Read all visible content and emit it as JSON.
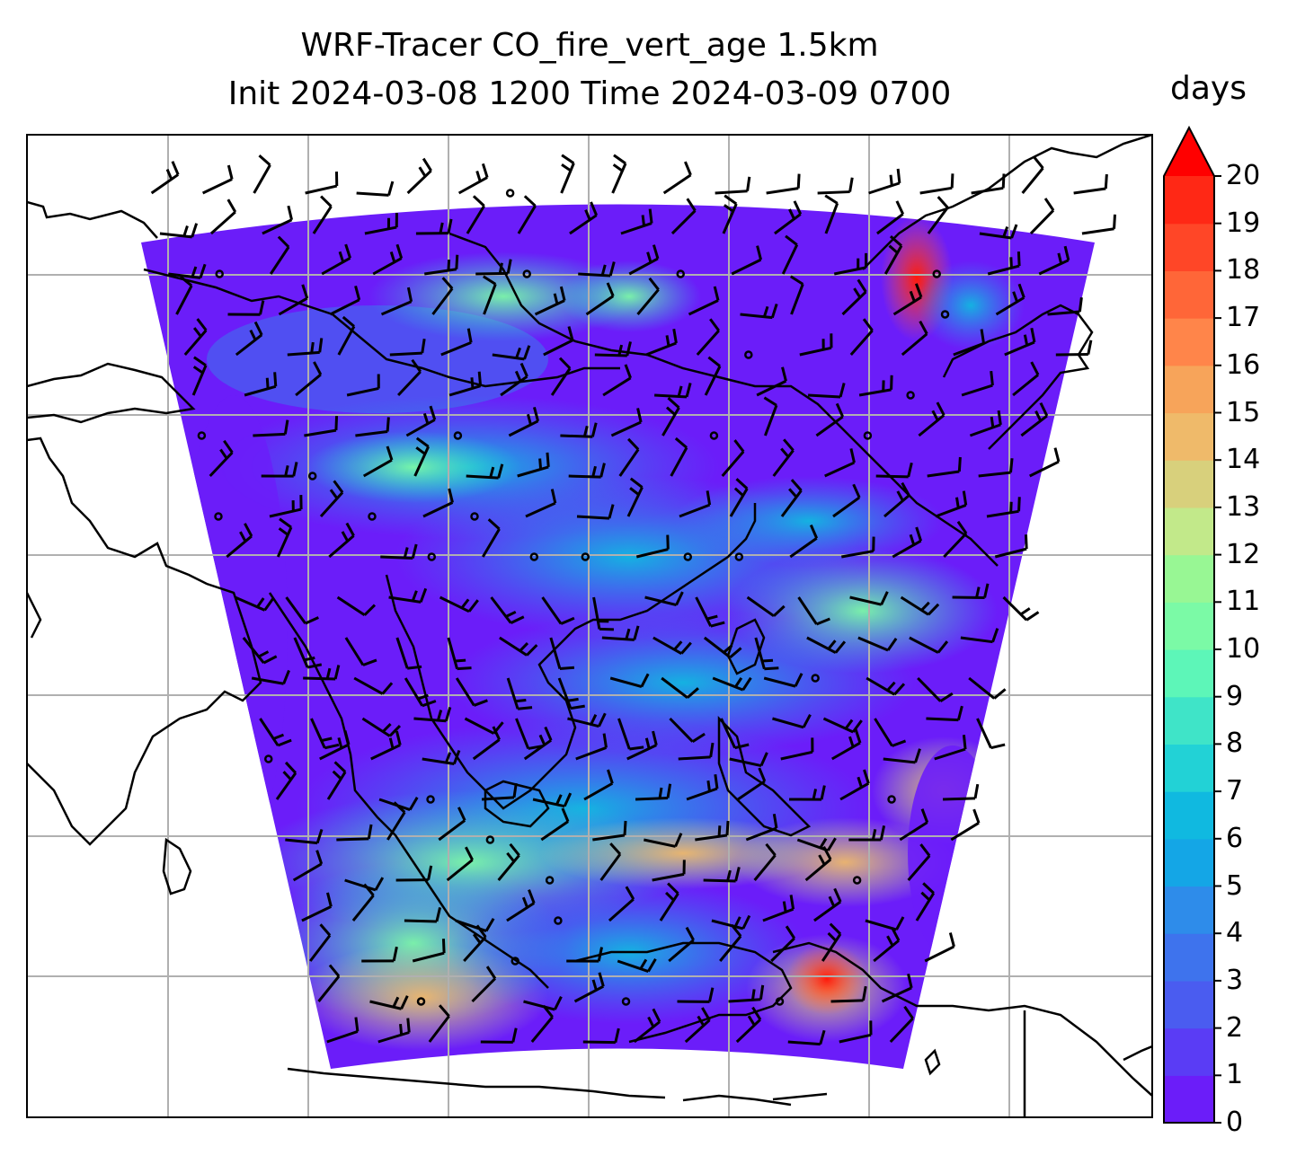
{
  "title": {
    "line1": "WRF-Tracer CO_fire_vert_age 1.5km",
    "line2": "Init 2024-03-08 1200 Time 2024-03-09 0700"
  },
  "colorbar": {
    "label": "days",
    "min": 0,
    "max": 20,
    "extend": "max",
    "ticks": [
      "0",
      "1",
      "2",
      "3",
      "4",
      "5",
      "6",
      "7",
      "8",
      "9",
      "10",
      "11",
      "12",
      "13",
      "14",
      "15",
      "16",
      "17",
      "18",
      "19",
      "20"
    ],
    "colors": [
      "#6b1df9",
      "#5a3cf5",
      "#4a5cf0",
      "#3e73ed",
      "#2e8cea",
      "#14a6e6",
      "#10b9e0",
      "#22d2d6",
      "#3fe4c8",
      "#5df6b8",
      "#7bfaa6",
      "#98f794",
      "#c2e98a",
      "#d8d07c",
      "#efba6a",
      "#f7a45a",
      "#ff854a",
      "#ff6638",
      "#ff4627",
      "#ff2815"
    ],
    "extend_color": "#ff0000"
  },
  "map": {
    "gridlines": true,
    "coastline_color": "#000000",
    "grid_color": "#b0b0b0",
    "wind_barbs": true
  }
}
